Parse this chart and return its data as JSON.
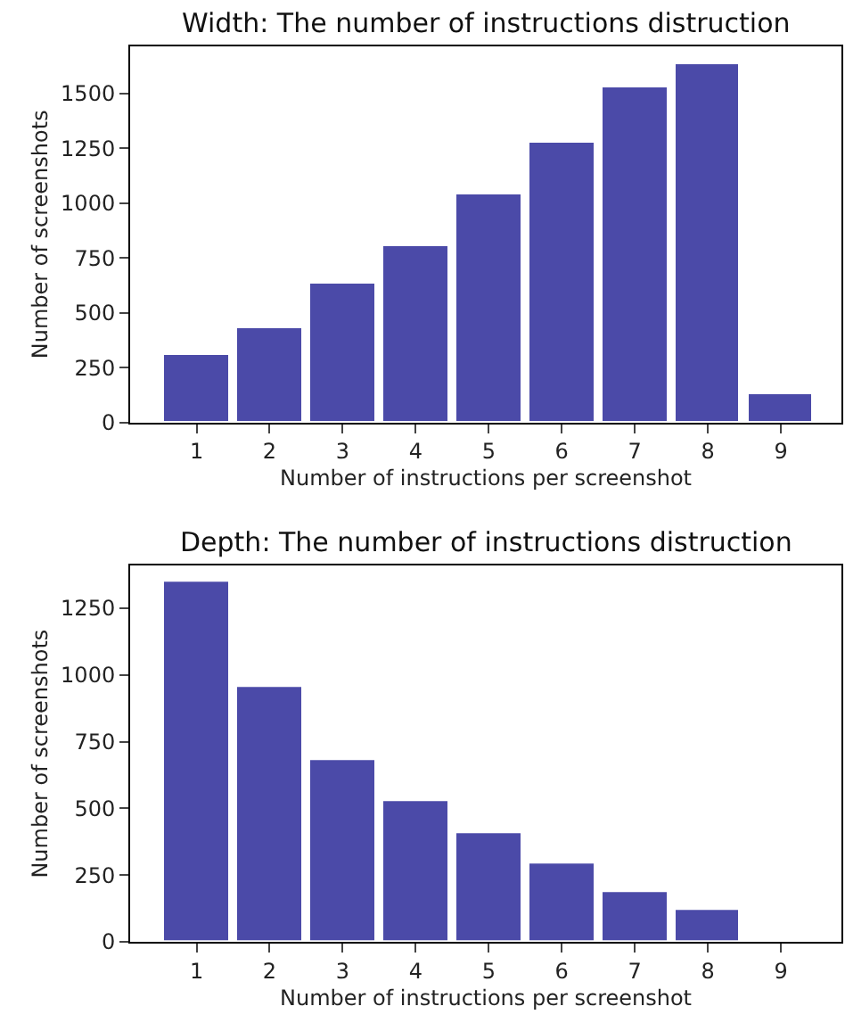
{
  "chart_data": [
    {
      "type": "bar",
      "title": "Width: The number of instructions distruction",
      "xlabel": "Number of instructions per screenshot",
      "ylabel": "Number of screenshots",
      "x": [
        1,
        2,
        3,
        4,
        5,
        6,
        7,
        8,
        9
      ],
      "values": [
        309,
        426,
        632,
        806,
        1036,
        1272,
        1530,
        1636,
        125
      ],
      "color": "#4b4aa8",
      "xlim": [
        0.09,
        9.83
      ],
      "xticks": [
        1,
        2,
        3,
        4,
        5,
        6,
        7,
        8,
        9
      ],
      "ylim": [
        0,
        1714
      ],
      "yticks": [
        0,
        250,
        500,
        750,
        1000,
        1250,
        1500
      ]
    },
    {
      "type": "bar",
      "title": "Depth: The number of instructions distruction",
      "xlabel": "Number of instructions per screenshot",
      "ylabel": "Number of screenshots",
      "x": [
        1,
        2,
        3,
        4,
        5,
        6,
        7,
        8,
        9
      ],
      "values": [
        1346,
        953,
        680,
        525,
        407,
        295,
        188,
        121,
        7
      ],
      "color": "#4b4aa8",
      "xlim": [
        0.09,
        9.83
      ],
      "xticks": [
        1,
        2,
        3,
        4,
        5,
        6,
        7,
        8,
        9
      ],
      "ylim": [
        0,
        1409
      ],
      "yticks": [
        0,
        250,
        500,
        750,
        1000,
        1250
      ]
    }
  ]
}
